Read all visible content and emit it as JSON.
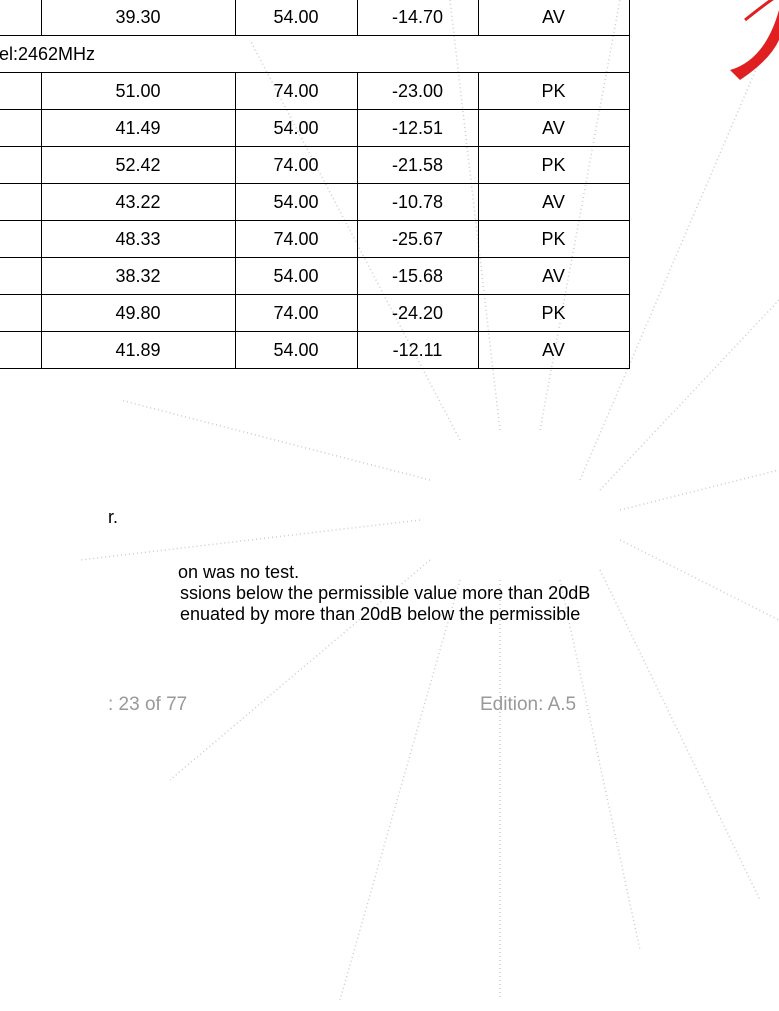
{
  "table": {
    "top_row": [
      "39.30",
      "54.00",
      "-14.70",
      "AV"
    ],
    "channel": "el:2462MHz",
    "rows": [
      [
        "51.00",
        "74.00",
        "-23.00",
        "PK"
      ],
      [
        "41.49",
        "54.00",
        "-12.51",
        "AV"
      ],
      [
        "52.42",
        "74.00",
        "-21.58",
        "PK"
      ],
      [
        "43.22",
        "54.00",
        "-10.78",
        "AV"
      ],
      [
        "48.33",
        "74.00",
        "-25.67",
        "PK"
      ],
      [
        "38.32",
        "54.00",
        "-15.68",
        "AV"
      ],
      [
        "49.80",
        "74.00",
        "-24.20",
        "PK"
      ],
      [
        "41.89",
        "54.00",
        "-12.11",
        "AV"
      ]
    ]
  },
  "notes": [
    "r.",
    "on was no test.",
    "ssions below the permissible value more than 20dB",
    "enuated by more than 20dB below the permissible"
  ],
  "footer": {
    "page": ": 23 of 77",
    "edition": "Edition:  A.5"
  }
}
